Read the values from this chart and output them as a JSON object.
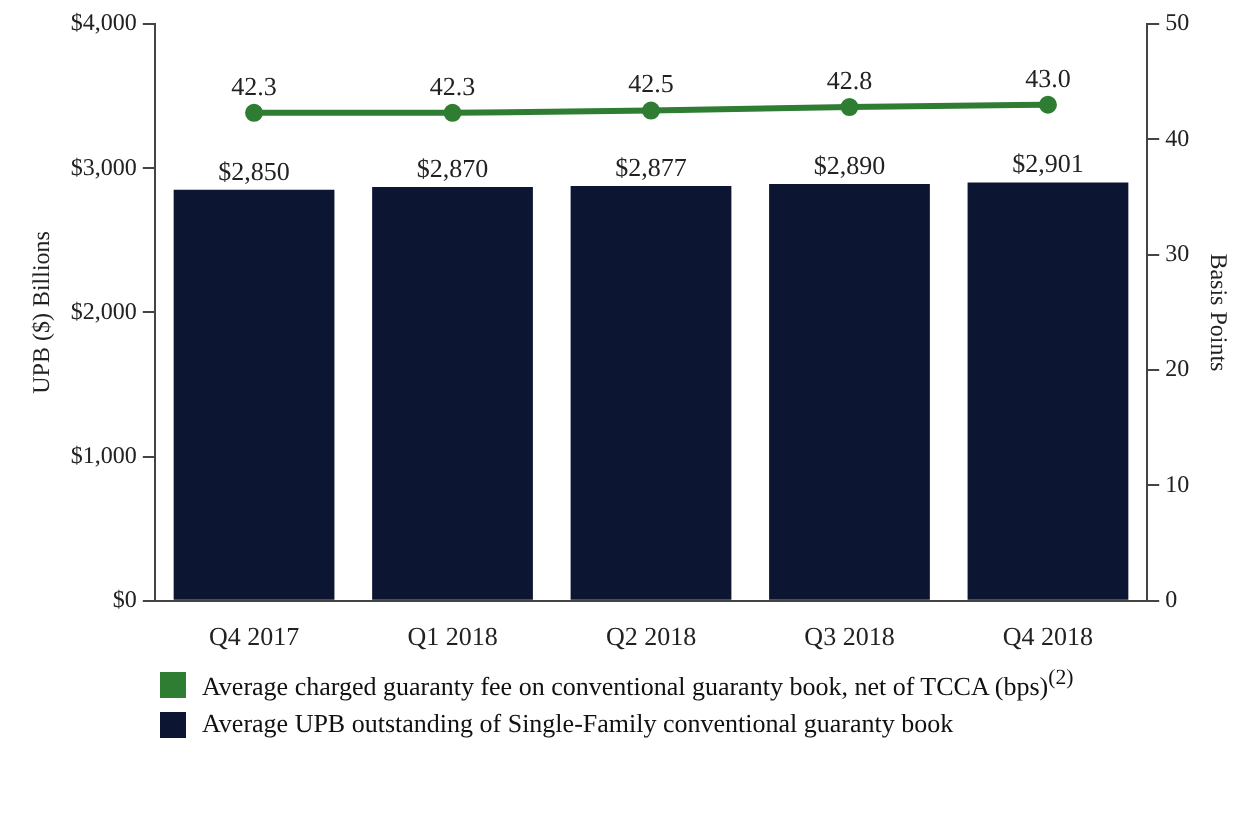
{
  "chart_data": {
    "type": "bar",
    "ylabel": "UPB ($) Billions",
    "y2label": "Basis Points",
    "categories": [
      "Q4 2017",
      "Q1 2018",
      "Q2 2018",
      "Q3 2018",
      "Q4 2018"
    ],
    "series": [
      {
        "name": "Average charged guaranty fee on conventional guaranty book, net of TCCA (bps)$^{(2)}$",
        "type": "line",
        "axis": "y2",
        "color": "#2e7d32",
        "values": [
          42.3,
          42.3,
          42.5,
          42.8,
          43.0
        ],
        "value_labels": [
          "42.3",
          "42.3",
          "42.5",
          "42.8",
          "43.0"
        ]
      },
      {
        "name": "Average UPB outstanding of Single-Family conventional guaranty book",
        "color": "#0c1633",
        "values": [
          2850,
          2870,
          2877,
          2890,
          2901
        ],
        "value_labels": [
          "$2,850",
          "$2,870",
          "$2,877",
          "$2,890",
          "$2,901"
        ]
      }
    ],
    "ylim": [
      0,
      4000
    ],
    "yticks": [
      {
        "value": 0,
        "label": "$0"
      },
      {
        "value": 1000,
        "label": "$1,000"
      },
      {
        "value": 2000,
        "label": "$2,000"
      },
      {
        "value": 3000,
        "label": "$3,000"
      },
      {
        "value": 4000,
        "label": "$4,000"
      }
    ],
    "y2lim": [
      0,
      50
    ],
    "y2ticks": [
      0,
      10,
      20,
      30,
      40,
      50
    ],
    "grid": false,
    "legend": "bottom",
    "marker": "circle"
  }
}
